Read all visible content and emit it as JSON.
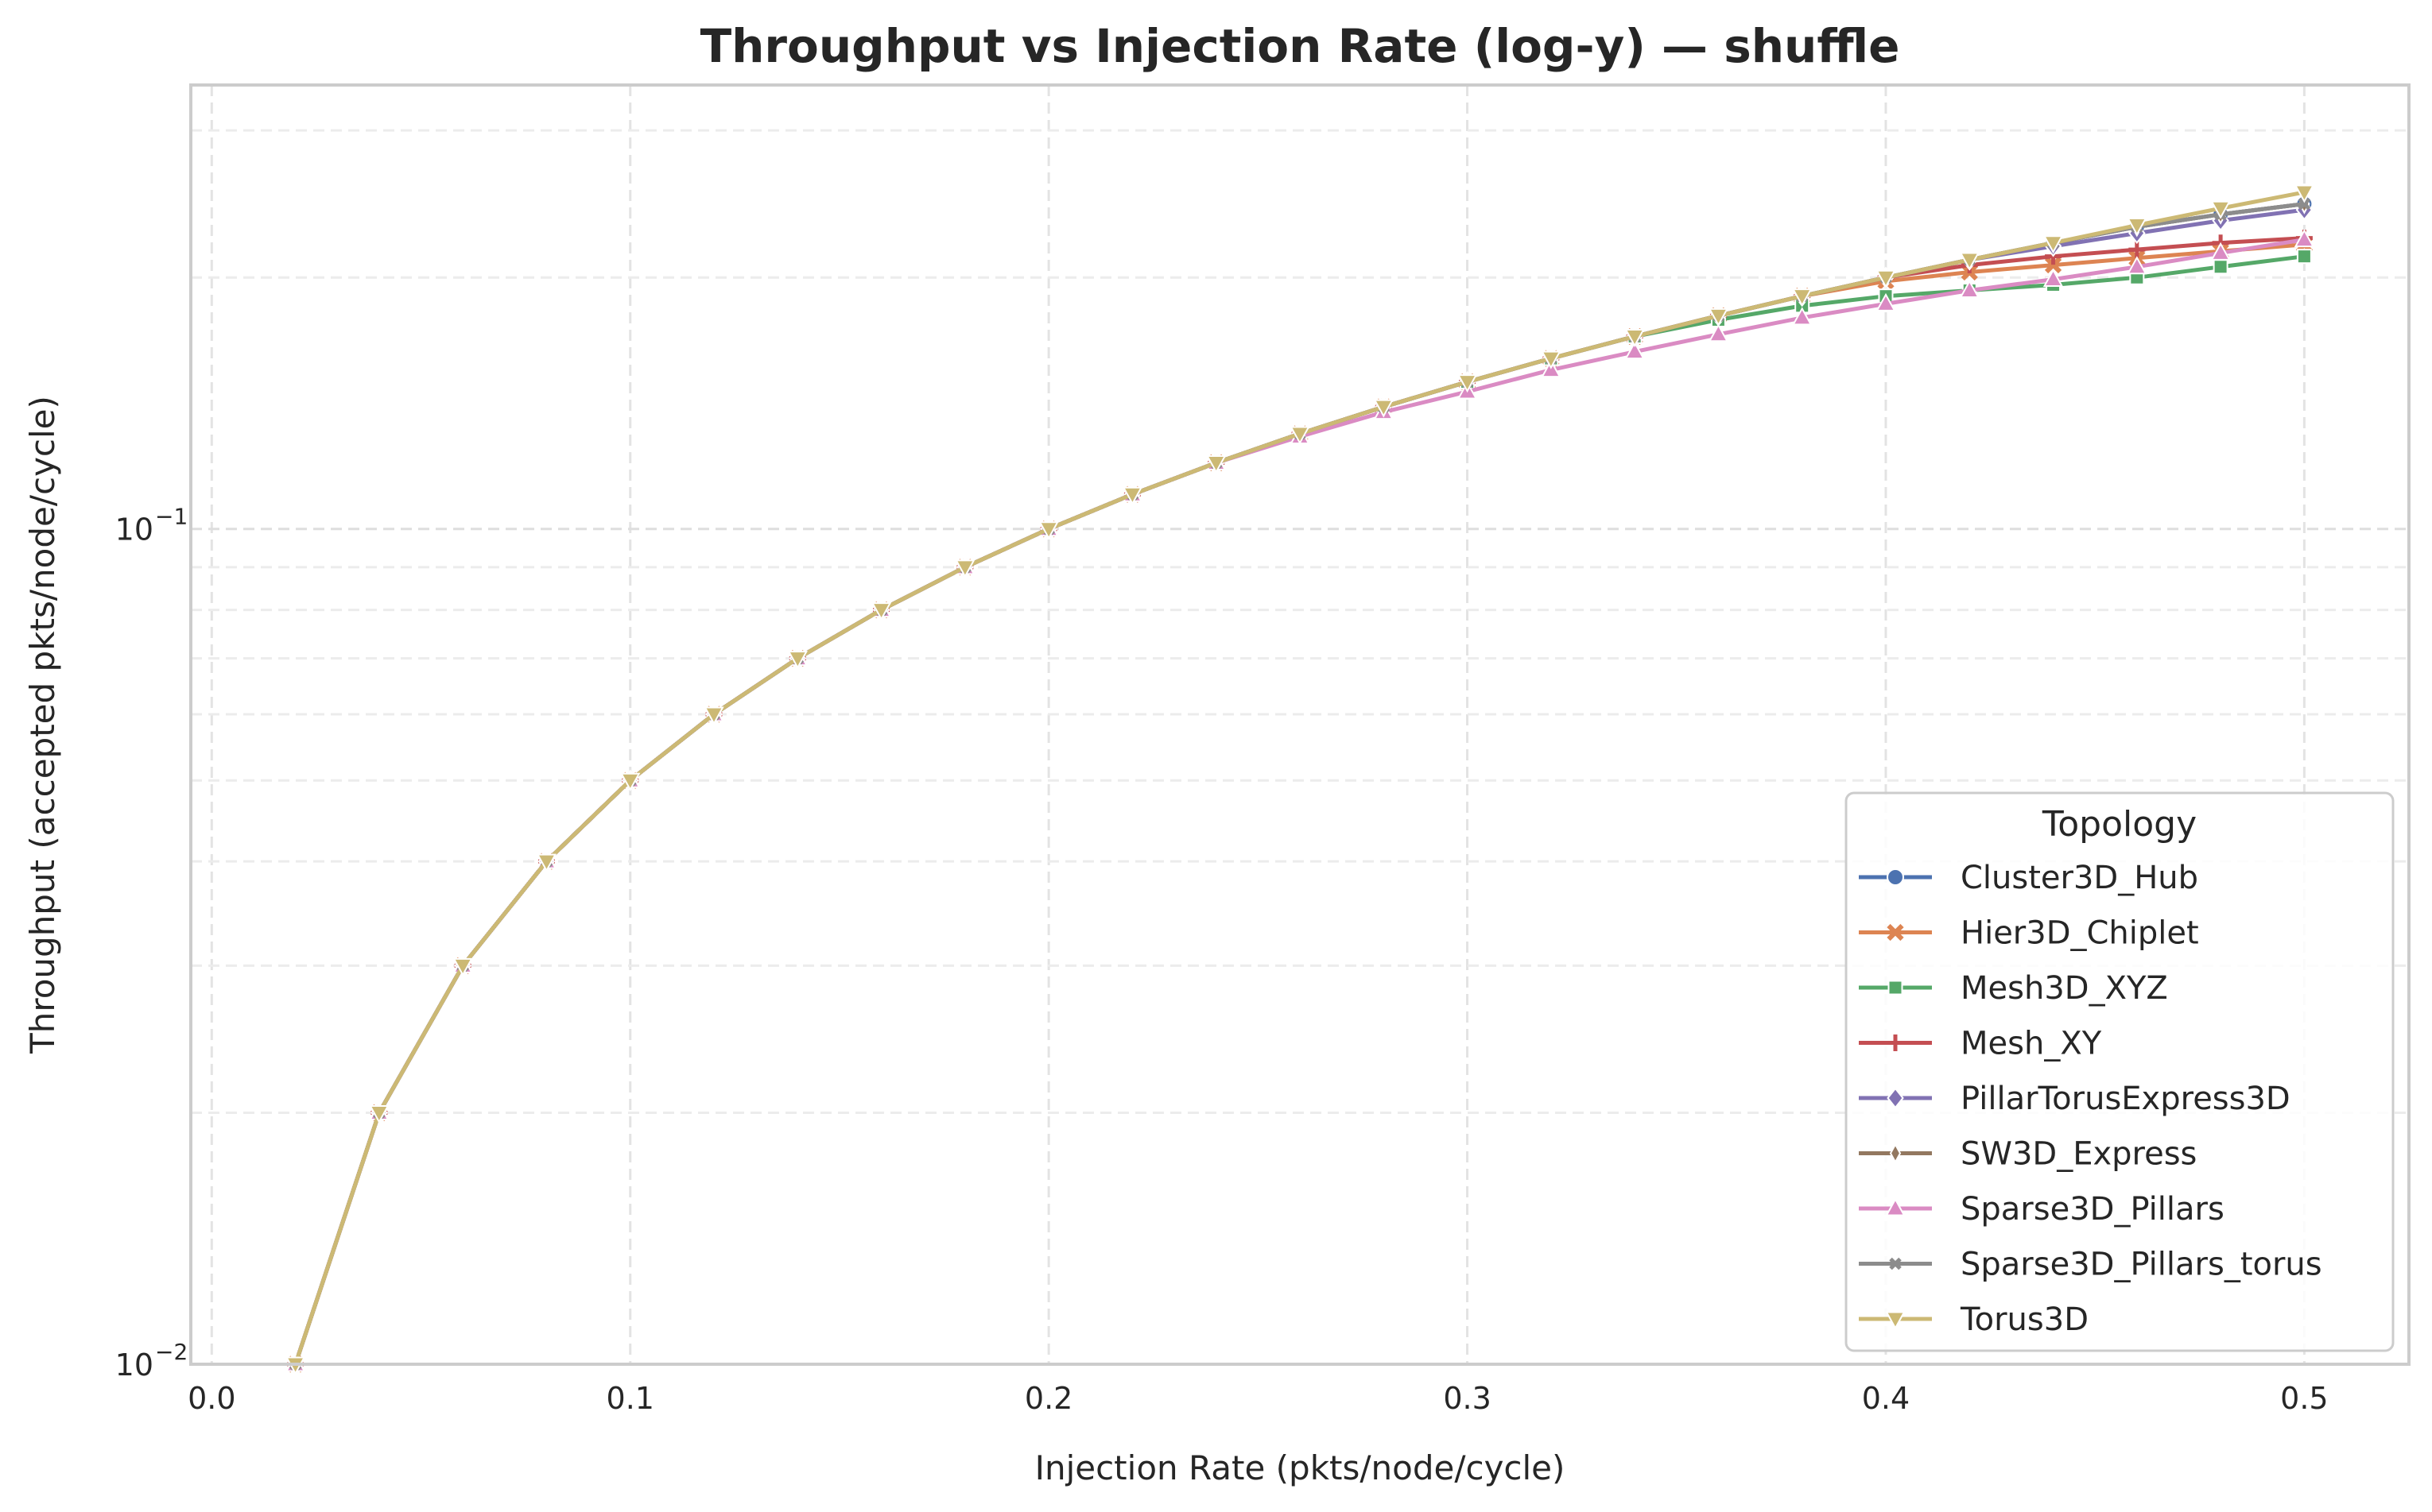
{
  "chart_data": {
    "type": "line",
    "title": "Throughput vs Injection Rate (log-y) — shuffle",
    "xlabel": "Injection Rate (pkts/node/cycle)",
    "ylabel": "Throughput (accepted pkts/node/cycle)",
    "xlim": [
      -0.005,
      0.525
    ],
    "ylim": [
      0.01,
      0.34
    ],
    "yscale": "log",
    "grid": true,
    "x_ticks": [
      0.0,
      0.1,
      0.2,
      0.3,
      0.4,
      0.5
    ],
    "x_tick_labels": [
      "0.0",
      "0.1",
      "0.2",
      "0.3",
      "0.4",
      "0.5"
    ],
    "y_major_ticks": [
      0.01,
      0.1
    ],
    "y_tick_labels": [
      "10",
      "10"
    ],
    "y_tick_exponents": [
      "−2",
      "−1"
    ],
    "legend": {
      "title": "Topology",
      "position": "lower right"
    },
    "x": [
      0.02,
      0.04,
      0.06,
      0.08,
      0.1,
      0.12,
      0.14,
      0.16,
      0.18,
      0.2,
      0.22,
      0.24,
      0.26,
      0.28,
      0.3,
      0.32,
      0.34,
      0.36,
      0.38,
      0.4,
      0.42,
      0.44,
      0.46,
      0.48,
      0.5
    ],
    "series": [
      {
        "name": "Cluster3D_Hub",
        "color": "#4c72b0",
        "marker": "circle",
        "values": [
          0.01,
          0.02,
          0.03,
          0.04,
          0.05,
          0.06,
          0.07,
          0.08,
          0.09,
          0.1,
          0.11,
          0.12,
          0.13,
          0.14,
          0.15,
          0.16,
          0.17,
          0.18,
          0.19,
          0.2,
          0.21,
          0.22,
          0.23,
          0.238,
          0.245
        ]
      },
      {
        "name": "Hier3D_Chiplet",
        "color": "#dd8452",
        "marker": "x",
        "values": [
          0.01,
          0.02,
          0.03,
          0.04,
          0.05,
          0.06,
          0.07,
          0.08,
          0.09,
          0.1,
          0.11,
          0.12,
          0.13,
          0.14,
          0.15,
          0.16,
          0.17,
          0.18,
          0.19,
          0.198,
          0.203,
          0.207,
          0.211,
          0.215,
          0.219
        ]
      },
      {
        "name": "Mesh3D_XYZ",
        "color": "#55a868",
        "marker": "square",
        "values": [
          0.01,
          0.02,
          0.03,
          0.04,
          0.05,
          0.06,
          0.07,
          0.08,
          0.09,
          0.1,
          0.11,
          0.12,
          0.13,
          0.14,
          0.15,
          0.16,
          0.17,
          0.178,
          0.185,
          0.19,
          0.193,
          0.196,
          0.2,
          0.206,
          0.212
        ]
      },
      {
        "name": "Mesh_XY",
        "color": "#c44e52",
        "marker": "plus",
        "values": [
          0.01,
          0.02,
          0.03,
          0.04,
          0.05,
          0.06,
          0.07,
          0.08,
          0.09,
          0.1,
          0.11,
          0.12,
          0.13,
          0.14,
          0.15,
          0.16,
          0.17,
          0.18,
          0.19,
          0.2,
          0.207,
          0.212,
          0.216,
          0.22,
          0.223
        ]
      },
      {
        "name": "PillarTorusExpress3D",
        "color": "#8172b3",
        "marker": "diamond",
        "values": [
          0.01,
          0.02,
          0.03,
          0.04,
          0.05,
          0.06,
          0.07,
          0.08,
          0.09,
          0.1,
          0.11,
          0.12,
          0.13,
          0.14,
          0.15,
          0.16,
          0.17,
          0.18,
          0.19,
          0.2,
          0.21,
          0.218,
          0.226,
          0.234,
          0.241
        ]
      },
      {
        "name": "SW3D_Express",
        "color": "#937860",
        "marker": "thin_diamond",
        "values": [
          0.01,
          0.02,
          0.03,
          0.04,
          0.05,
          0.06,
          0.07,
          0.08,
          0.09,
          0.1,
          0.11,
          0.12,
          0.13,
          0.14,
          0.15,
          0.16,
          0.17,
          0.18,
          0.19,
          0.2,
          0.21,
          0.22,
          0.23,
          0.238,
          0.245
        ]
      },
      {
        "name": "Sparse3D_Pillars",
        "color": "#da8bc3",
        "marker": "triangle_up",
        "values": [
          0.01,
          0.02,
          0.03,
          0.04,
          0.05,
          0.06,
          0.07,
          0.08,
          0.09,
          0.1,
          0.11,
          0.12,
          0.129,
          0.138,
          0.146,
          0.155,
          0.163,
          0.171,
          0.179,
          0.186,
          0.193,
          0.199,
          0.206,
          0.214,
          0.222
        ]
      },
      {
        "name": "Sparse3D_Pillars_torus",
        "color": "#8c8c8c",
        "marker": "x_small",
        "values": [
          0.01,
          0.02,
          0.03,
          0.04,
          0.05,
          0.06,
          0.07,
          0.08,
          0.09,
          0.1,
          0.11,
          0.12,
          0.13,
          0.14,
          0.15,
          0.16,
          0.17,
          0.18,
          0.19,
          0.2,
          0.21,
          0.22,
          0.23,
          0.238,
          0.245
        ]
      },
      {
        "name": "Torus3D",
        "color": "#ccb974",
        "marker": "triangle_down",
        "values": [
          0.01,
          0.02,
          0.03,
          0.04,
          0.05,
          0.06,
          0.07,
          0.08,
          0.09,
          0.1,
          0.11,
          0.12,
          0.13,
          0.14,
          0.15,
          0.16,
          0.17,
          0.18,
          0.19,
          0.2,
          0.21,
          0.22,
          0.231,
          0.242,
          0.253
        ]
      }
    ]
  }
}
